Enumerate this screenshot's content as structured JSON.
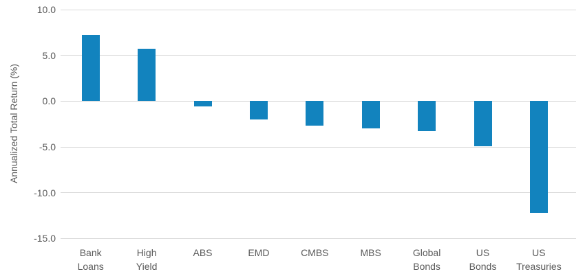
{
  "chart_data": {
    "type": "bar",
    "title": "",
    "xlabel": "",
    "ylabel": "Annualized Total Return (%)",
    "categories": [
      "Bank Loans",
      "High Yield",
      "ABS",
      "EMD",
      "CMBS",
      "MBS",
      "Global Bonds",
      "US Bonds",
      "US Treasuries"
    ],
    "category_lines": [
      [
        "Bank",
        "Loans"
      ],
      [
        "High",
        "Yield"
      ],
      [
        "ABS"
      ],
      [
        "EMD"
      ],
      [
        "CMBS"
      ],
      [
        "MBS"
      ],
      [
        "Global",
        "Bonds"
      ],
      [
        "US",
        "Bonds"
      ],
      [
        "US",
        "Treasuries"
      ]
    ],
    "values": [
      7.2,
      5.7,
      -0.6,
      -2.0,
      -2.7,
      -3.0,
      -3.3,
      -4.9,
      -12.2
    ],
    "ylim": [
      -15,
      10
    ],
    "yticks": [
      {
        "value": 10,
        "label": "10.0"
      },
      {
        "value": 5,
        "label": "5.0"
      },
      {
        "value": 0,
        "label": "0.0"
      },
      {
        "value": -5,
        "label": "-5.0"
      },
      {
        "value": -10,
        "label": "-10.0"
      },
      {
        "value": -15,
        "label": "-15.0"
      }
    ],
    "grid": true,
    "legend": false,
    "bar_color": "#1283be",
    "gridline_color": "#d9d9d9",
    "text_color": "#595959"
  }
}
